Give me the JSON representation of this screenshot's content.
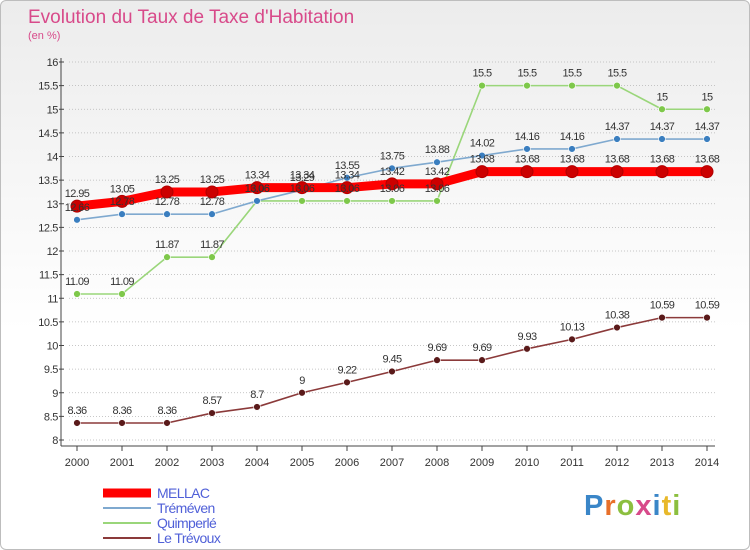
{
  "title": "Evolution du Taux de Taxe d'Habitation",
  "subtitle": "(en %)",
  "logo": {
    "letters": [
      {
        "ch": "P",
        "color": "#3a86c8"
      },
      {
        "ch": "r",
        "color": "#e8702a"
      },
      {
        "ch": "o",
        "color": "#8cbf3f"
      },
      {
        "ch": "x",
        "color": "#d84a8a"
      },
      {
        "ch": "i",
        "color": "#3a86c8"
      },
      {
        "ch": "t",
        "color": "#e8b82a"
      },
      {
        "ch": "i",
        "color": "#8cbf3f"
      }
    ]
  },
  "chart_data": {
    "type": "line",
    "title": "Evolution du Taux de Taxe d'Habitation",
    "ylabel": "(en %)",
    "x": [
      2000,
      2001,
      2002,
      2003,
      2004,
      2005,
      2006,
      2007,
      2008,
      2009,
      2010,
      2011,
      2012,
      2013,
      2014
    ],
    "ylim": [
      8,
      16
    ],
    "yticks": [
      8,
      8.5,
      9,
      9.5,
      10,
      10.5,
      11,
      11.5,
      12,
      12.5,
      13,
      13.5,
      14,
      14.5,
      15,
      15.5,
      16
    ],
    "ytick_labels": [
      "8",
      "8.5",
      "9",
      "9.5",
      "10",
      "10.5",
      "11",
      "11.5",
      "12",
      "12.5",
      "13",
      "13.5",
      "14",
      "14.5",
      "15",
      "15.5",
      "16"
    ],
    "grid": "horizontal dotted",
    "legend": "bottom-left",
    "series": [
      {
        "name": "MELLAC",
        "color": "#ff0000",
        "marker": "#cc0000",
        "width": "thick",
        "values": [
          12.95,
          13.05,
          13.25,
          13.25,
          13.34,
          13.34,
          13.34,
          13.42,
          13.42,
          13.68,
          13.68,
          13.68,
          13.68,
          13.68,
          13.68
        ],
        "labels": [
          "12.95",
          "13.05",
          "13.25",
          "13.25",
          "13.34",
          "13.34",
          "13.34",
          "13.42",
          "13.42",
          "13.68",
          "13.68",
          "13.68",
          "13.68",
          "13.68",
          "13.68"
        ]
      },
      {
        "name": "Tréméven",
        "color": "#7fa9cf",
        "marker": "#3a7ebf",
        "width": "thin",
        "values": [
          12.66,
          12.78,
          12.78,
          12.78,
          13.06,
          13.29,
          13.55,
          13.75,
          13.88,
          14.02,
          14.16,
          14.16,
          14.37,
          14.37,
          14.37
        ],
        "labels": [
          "12.66",
          "12.78",
          "12.78",
          "12.78",
          "13.06",
          "13.29",
          "13.55",
          "13.75",
          "13.88",
          "14.02",
          "14.16",
          "14.16",
          "14.37",
          "14.37",
          "14.37"
        ]
      },
      {
        "name": "Quimperlé",
        "color": "#9ad67a",
        "marker": "#7ec84a",
        "width": "thin",
        "values": [
          11.09,
          11.09,
          11.87,
          11.87,
          13.06,
          13.06,
          13.06,
          13.06,
          13.06,
          15.5,
          15.5,
          15.5,
          15.5,
          15,
          15
        ],
        "labels": [
          "11.09",
          "11.09",
          "11.87",
          "11.87",
          "13.06",
          "13.06",
          "13.06",
          "13.06",
          "13.06",
          "15.5",
          "15.5",
          "15.5",
          "15.5",
          "15",
          "15"
        ]
      },
      {
        "name": "Le Trévoux",
        "color": "#8b3a3a",
        "marker": "#5a1a1a",
        "width": "thin",
        "values": [
          8.36,
          8.36,
          8.36,
          8.57,
          8.7,
          9,
          9.22,
          9.45,
          9.69,
          9.69,
          9.93,
          10.13,
          10.38,
          10.59,
          10.59
        ],
        "labels": [
          "8.36",
          "8.36",
          "8.36",
          "8.57",
          "8.7",
          "9",
          "9.22",
          "9.45",
          "9.69",
          "9.69",
          "9.93",
          "10.13",
          "10.38",
          "10.59",
          "10.59"
        ]
      }
    ]
  }
}
